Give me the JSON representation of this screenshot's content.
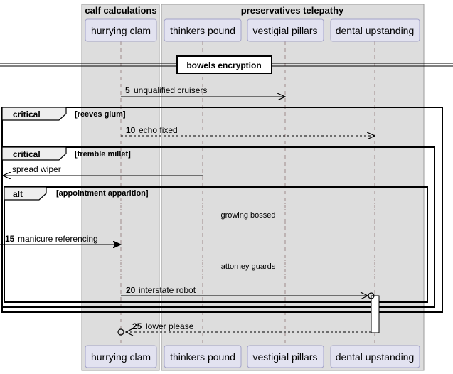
{
  "colors": {
    "box_fill": "#dddddd",
    "box_stroke": "#9a9a9a",
    "participant_fill": "#e2e2f0",
    "participant_stroke": "#a3a3c8",
    "frame_stroke": "#000000",
    "lifeline": "#a08a8a",
    "activation_fill": "#ffffff"
  },
  "boxes": [
    {
      "title": "calf calculations"
    },
    {
      "title": "preservatives telepathy"
    }
  ],
  "participants": [
    {
      "name": "hurrying clam"
    },
    {
      "name": "thinkers pound"
    },
    {
      "name": "vestigial pillars"
    },
    {
      "name": "dental upstanding"
    }
  ],
  "divider": {
    "label": "bowels encryption"
  },
  "fragments": [
    {
      "kind": "critical",
      "guard": "[reeves glum]"
    },
    {
      "kind": "critical",
      "guard": "[tremble millet]"
    },
    {
      "kind": "alt",
      "guard": "[appointment apparition]"
    }
  ],
  "delays": [
    {
      "label": "growing bossed"
    },
    {
      "label": "attorney guards"
    }
  ],
  "messages": [
    {
      "num": "5",
      "text": "unqualified cruisers",
      "from": "hurrying clam",
      "to": "vestigial pillars",
      "style": "solid",
      "head": "open"
    },
    {
      "num": "10",
      "text": "echo fixed",
      "from": "hurrying clam",
      "to": "dental upstanding",
      "style": "dashed",
      "head": "open"
    },
    {
      "num": "",
      "text": "spread wiper",
      "from": "thinkers pound",
      "to": "outside-left",
      "style": "solid",
      "head": "open"
    },
    {
      "num": "15",
      "text": "manicure referencing",
      "from": "outside-left",
      "to": "hurrying clam",
      "style": "solid",
      "head": "filled"
    },
    {
      "num": "20",
      "text": "interstate robot",
      "from": "hurrying clam",
      "to": "dental upstanding",
      "style": "solid",
      "head": "open-circle"
    },
    {
      "num": "25",
      "text": "lower please",
      "from": "dental upstanding",
      "to": "hurrying clam",
      "style": "dashed",
      "head": "open-circle"
    }
  ]
}
